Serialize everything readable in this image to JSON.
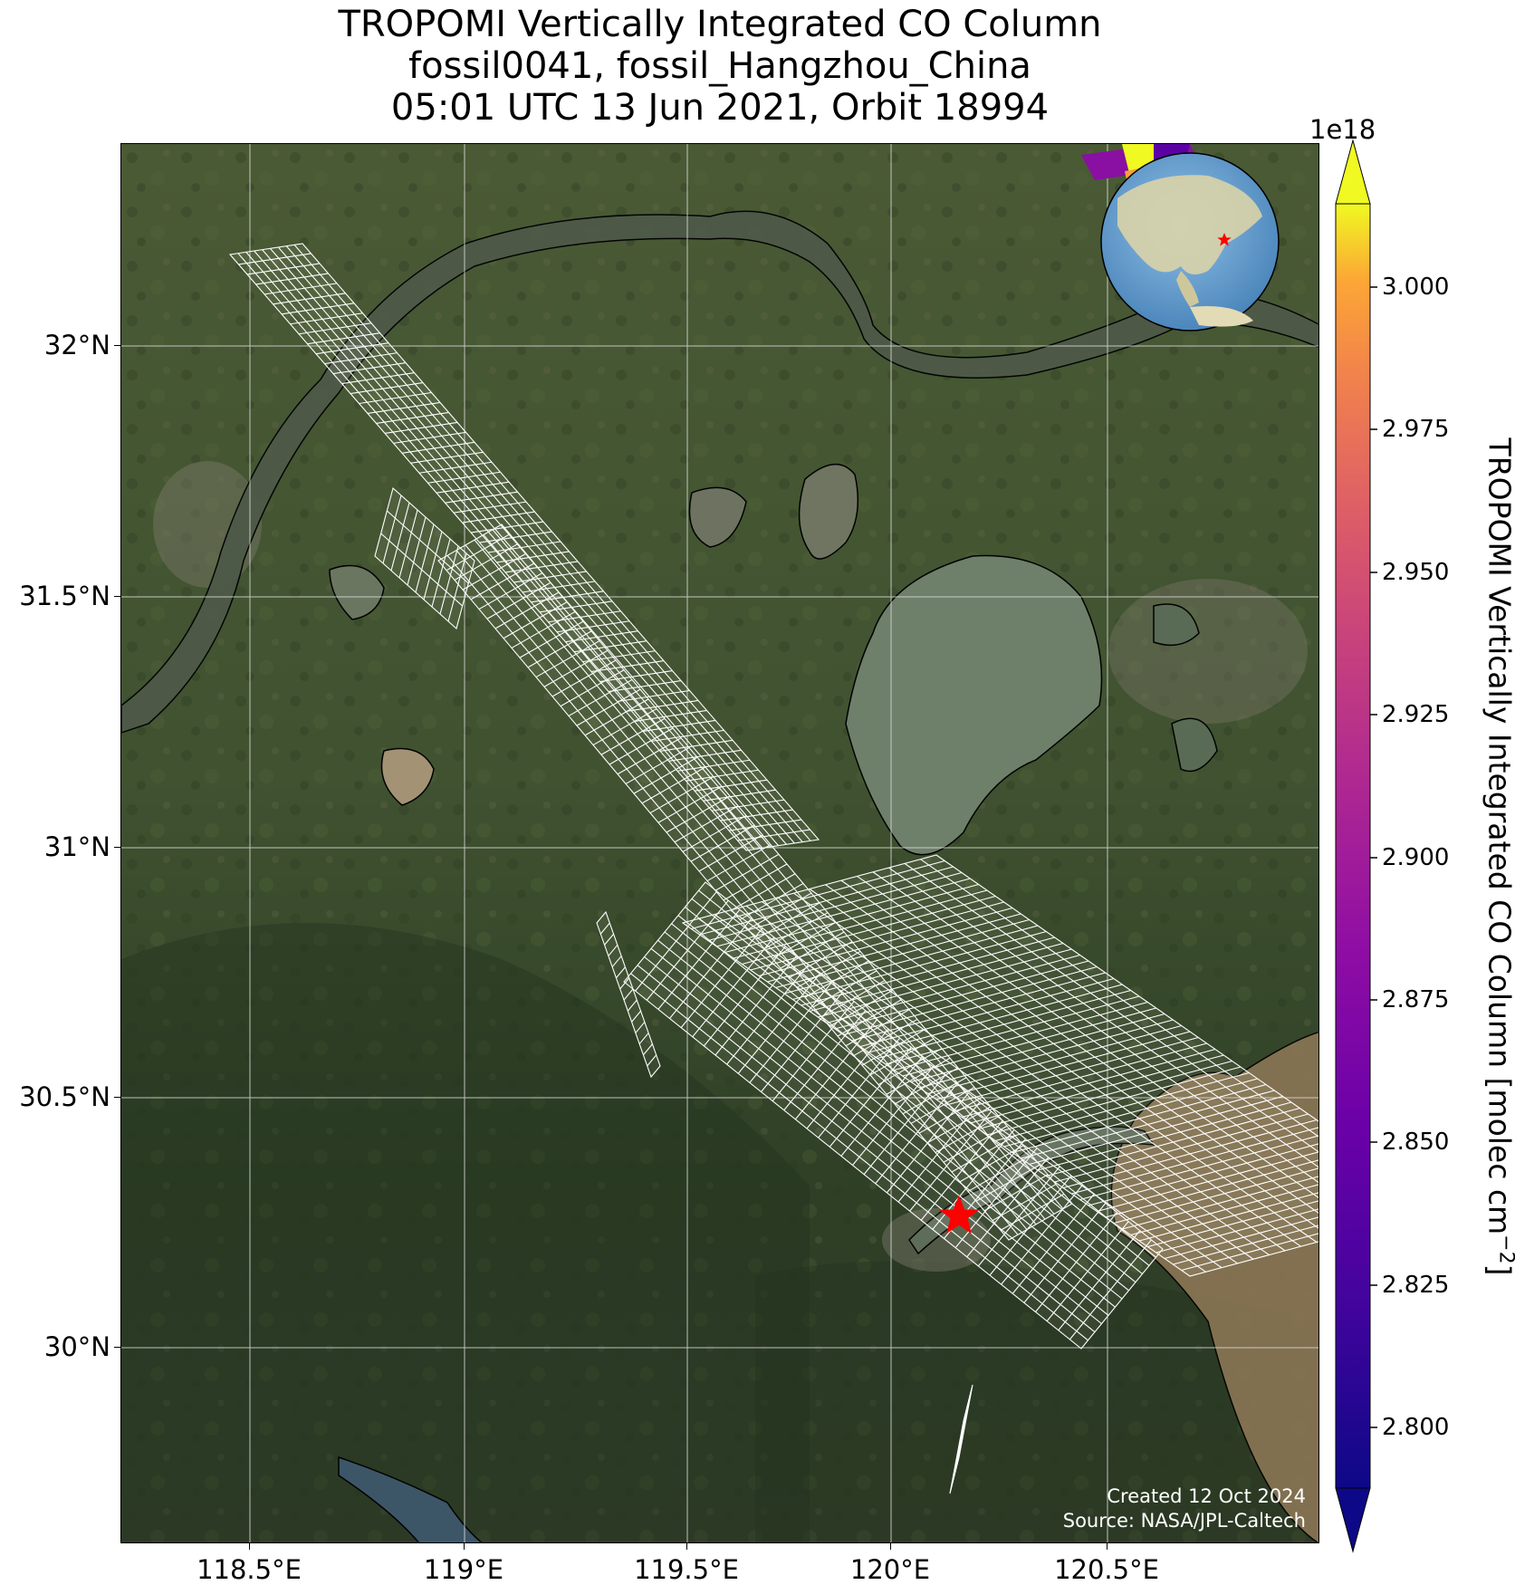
{
  "title": {
    "line1": "TROPOMI Vertically Integrated CO Column",
    "line2": "fossil0041, fossil_Hangzhou_China",
    "line3": "05:01 UTC 13 Jun 2021, Orbit 18994"
  },
  "map": {
    "lon_range": [
      118.2,
      119.0,
      120.75
    ],
    "lat_ticks": [
      "32°N",
      "31.5°N",
      "31°N",
      "30.5°N",
      "30°N"
    ],
    "lon_ticks": [
      "118.5°E",
      "119°E",
      "119.5°E",
      "120°E",
      "120.5°E"
    ],
    "gridlines": true,
    "target_marker": {
      "name": "fossil_Hangzhou_China",
      "color": "#ff0000",
      "icon": "star-icon"
    },
    "overlay_color": "#ffffff",
    "basemap": "satellite imagery"
  },
  "credits": {
    "created": "Created 12 Oct 2024",
    "source": "Source: NASA/JPL-Caltech"
  },
  "colorbar": {
    "exponent": "1e18",
    "label": "TROPOMI Vertically Integrated CO Column [molec cm",
    "label_sup": "−2",
    "label_end": "]",
    "ticks": [
      "3.000",
      "2.975",
      "2.950",
      "2.925",
      "2.900",
      "2.875",
      "2.850",
      "2.825",
      "2.800"
    ],
    "colormap": "plasma",
    "extend": "both"
  },
  "inset_globe": {
    "marker_color": "#ff0000",
    "ocean_color": "#6fa8d6",
    "land_color": "#e8dfb8"
  }
}
